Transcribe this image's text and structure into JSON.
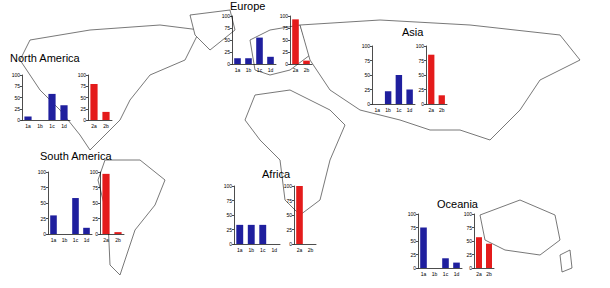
{
  "chart_data": [
    {
      "type": "bar",
      "title": "North America",
      "categories": [
        "1a",
        "1b",
        "1c",
        "1d"
      ],
      "values": [
        8,
        0,
        58,
        33
      ],
      "color": "#1f1f9e",
      "ylim": [
        0,
        100
      ],
      "yticks": [
        0,
        25,
        50,
        75,
        100
      ],
      "grid": false
    },
    {
      "type": "bar",
      "categories": [
        "2a",
        "2b"
      ],
      "values": [
        80,
        18
      ],
      "color": "#e41b1b",
      "ylim": [
        0,
        100
      ],
      "yticks": [
        0,
        25,
        50,
        75,
        100
      ],
      "grid": false
    },
    {
      "type": "bar",
      "title": "Europe",
      "categories": [
        "1a",
        "1b",
        "1c",
        "1d"
      ],
      "values": [
        12,
        12,
        55,
        15
      ],
      "color": "#1f1f9e",
      "ylim": [
        0,
        100
      ],
      "yticks": [
        0,
        25,
        50,
        75,
        100
      ],
      "grid": false
    },
    {
      "type": "bar",
      "categories": [
        "2a",
        "2b"
      ],
      "values": [
        93,
        7
      ],
      "color": "#e41b1b",
      "ylim": [
        0,
        100
      ],
      "yticks": [
        0,
        25,
        50,
        75,
        100
      ],
      "grid": false
    },
    {
      "type": "bar",
      "title": "Asia",
      "categories": [
        "1a",
        "1b",
        "1c",
        "1d"
      ],
      "values": [
        0,
        22,
        50,
        25
      ],
      "color": "#1f1f9e",
      "ylim": [
        0,
        100
      ],
      "yticks": [
        0,
        25,
        50,
        75,
        100
      ],
      "grid": false
    },
    {
      "type": "bar",
      "categories": [
        "2a",
        "2b"
      ],
      "values": [
        85,
        15
      ],
      "color": "#e41b1b",
      "ylim": [
        0,
        100
      ],
      "yticks": [
        0,
        25,
        50,
        75,
        100
      ],
      "grid": false
    },
    {
      "type": "bar",
      "title": "South America",
      "categories": [
        "1a",
        "1b",
        "1c",
        "1d"
      ],
      "values": [
        30,
        0,
        58,
        10
      ],
      "color": "#1f1f9e",
      "ylim": [
        0,
        100
      ],
      "yticks": [
        0,
        25,
        50,
        75,
        100
      ],
      "grid": false
    },
    {
      "type": "bar",
      "categories": [
        "2a",
        "2b"
      ],
      "values": [
        97,
        3
      ],
      "color": "#e41b1b",
      "ylim": [
        0,
        100
      ],
      "yticks": [
        0,
        25,
        50,
        75,
        100
      ],
      "grid": false
    },
    {
      "type": "bar",
      "title": "Africa",
      "categories": [
        "1a",
        "1b",
        "1c",
        "1d"
      ],
      "values": [
        33,
        33,
        33,
        0
      ],
      "color": "#1f1f9e",
      "ylim": [
        0,
        100
      ],
      "yticks": [
        0,
        25,
        50,
        75,
        100
      ],
      "grid": false
    },
    {
      "type": "bar",
      "categories": [
        "2a",
        "2b"
      ],
      "values": [
        100,
        0
      ],
      "color": "#e41b1b",
      "ylim": [
        0,
        100
      ],
      "yticks": [
        0,
        25,
        50,
        75,
        100
      ],
      "grid": false
    },
    {
      "type": "bar",
      "title": "Oceania",
      "categories": [
        "1a",
        "1b",
        "1c",
        "1d"
      ],
      "values": [
        75,
        0,
        18,
        10
      ],
      "color": "#1f1f9e",
      "ylim": [
        0,
        100
      ],
      "yticks": [
        0,
        25,
        50,
        75,
        100
      ],
      "grid": false
    },
    {
      "type": "bar",
      "categories": [
        "2a",
        "2b"
      ],
      "values": [
        57,
        45
      ],
      "color": "#e41b1b",
      "ylim": [
        0,
        100
      ],
      "yticks": [
        0,
        25,
        50,
        75,
        100
      ],
      "grid": false
    }
  ]
}
